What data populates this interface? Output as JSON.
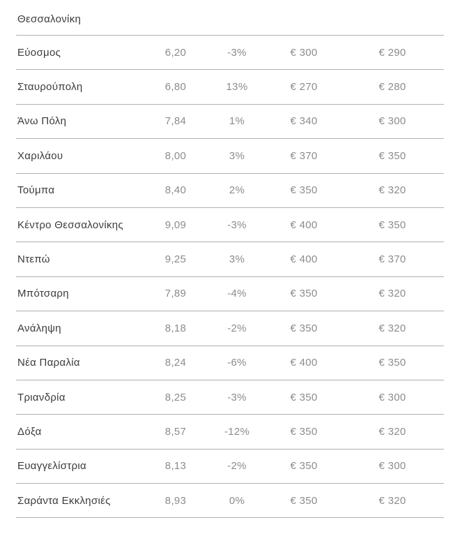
{
  "header": {
    "title": "Θεσσαλονίκη"
  },
  "colors": {
    "background": "#ffffff",
    "text_dark": "#3b3b3b",
    "text_muted": "#8c8c8c",
    "divider": "#b0b0b0"
  },
  "chart_data": {
    "type": "table",
    "title": "Θεσσαλονίκη",
    "column_headers_visible": false,
    "rows": [
      [
        "Εύοσμος",
        "6,20",
        "-3%",
        "€ 300",
        "€ 290"
      ],
      [
        "Σταυρούπολη",
        "6,80",
        "13%",
        "€ 270",
        "€ 280"
      ],
      [
        "Άνω Πόλη",
        "7,84",
        "1%",
        "€ 340",
        "€ 300"
      ],
      [
        "Χαριλάου",
        "8,00",
        "3%",
        "€ 370",
        "€ 350"
      ],
      [
        "Τούμπα",
        "8,40",
        "2%",
        "€ 350",
        "€ 320"
      ],
      [
        "Κέντρο Θεσσαλονίκης",
        "9,09",
        "-3%",
        "€ 400",
        "€ 350"
      ],
      [
        "Ντεπώ",
        "9,25",
        "3%",
        "€ 400",
        "€ 370"
      ],
      [
        "Μπότσαρη",
        "7,89",
        "-4%",
        "€ 350",
        "€ 320"
      ],
      [
        "Ανάληψη",
        "8,18",
        "-2%",
        "€ 350",
        "€ 320"
      ],
      [
        "Νέα Παραλία",
        "8,24",
        "-6%",
        "€ 400",
        "€ 350"
      ],
      [
        "Τριανδρία",
        "8,25",
        "-3%",
        "€ 350",
        "€ 300"
      ],
      [
        "Δόξα",
        "8,57",
        "-12%",
        "€ 350",
        "€ 320"
      ],
      [
        "Ευαγγελίστρια",
        "8,13",
        "-2%",
        "€ 350",
        "€ 300"
      ],
      [
        "Σαράντα Εκκλησιές",
        "8,93",
        "0%",
        "€ 350",
        "€ 320"
      ]
    ],
    "numeric": {
      "areas": [
        "Εύοσμος",
        "Σταυρούπολη",
        "Άνω Πόλη",
        "Χαριλάου",
        "Τούμπα",
        "Κέντρο Θεσσαλονίκης",
        "Ντεπώ",
        "Μπότσαρη",
        "Ανάληψη",
        "Νέα Παραλία",
        "Τριανδρία",
        "Δόξα",
        "Ευαγγελίστρια",
        "Σαράντα Εκκλησιές"
      ],
      "values": [
        6.2,
        6.8,
        7.84,
        8.0,
        8.4,
        9.09,
        9.25,
        7.89,
        8.18,
        8.24,
        8.25,
        8.57,
        8.13,
        8.93
      ],
      "change_pct": [
        -3,
        13,
        1,
        3,
        2,
        -3,
        3,
        -4,
        -2,
        -6,
        -3,
        -12,
        -2,
        0
      ],
      "price_a_eur": [
        300,
        270,
        340,
        370,
        350,
        400,
        400,
        350,
        350,
        400,
        350,
        350,
        350,
        350
      ],
      "price_b_eur": [
        290,
        280,
        300,
        350,
        320,
        350,
        370,
        320,
        320,
        350,
        300,
        320,
        300,
        320
      ]
    }
  }
}
